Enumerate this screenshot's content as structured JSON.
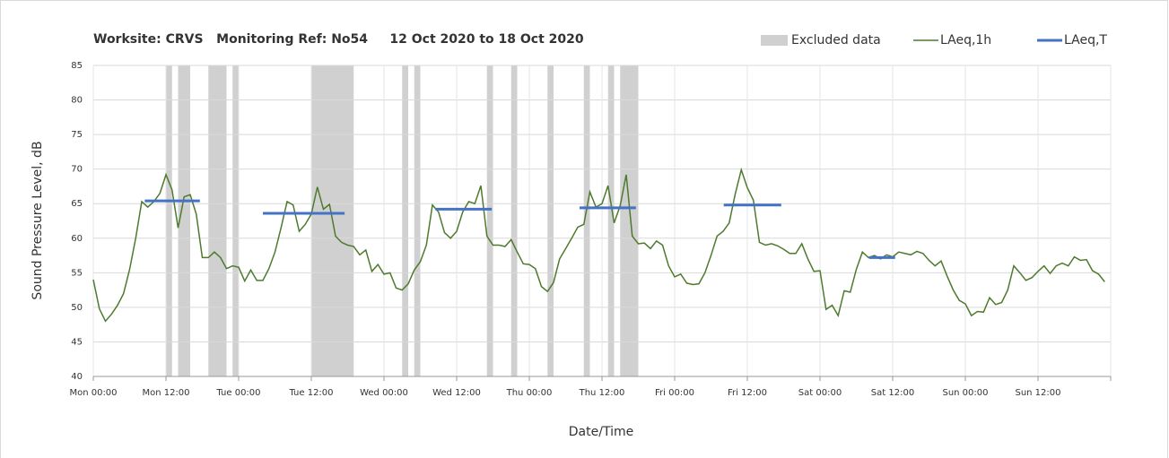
{
  "chart_data": {
    "type": "line",
    "title": "Worksite: CRVS   Monitoring Ref: No54     12 Oct 2020 to 18 Oct 2020",
    "x_label": "Date/Time",
    "y_label": "Sound Pressure Level, dB",
    "xlim": [
      0,
      168
    ],
    "ylim": [
      40,
      85
    ],
    "yticks": [
      40,
      45,
      50,
      55,
      60,
      65,
      70,
      75,
      80,
      85
    ],
    "xticks": [
      {
        "value": 0,
        "label": "Mon 00:00"
      },
      {
        "value": 12,
        "label": "Mon 12:00"
      },
      {
        "value": 24,
        "label": "Tue 00:00"
      },
      {
        "value": 36,
        "label": "Tue 12:00"
      },
      {
        "value": 48,
        "label": "Wed 00:00"
      },
      {
        "value": 60,
        "label": "Wed 12:00"
      },
      {
        "value": 72,
        "label": "Thu 00:00"
      },
      {
        "value": 84,
        "label": "Thu 12:00"
      },
      {
        "value": 96,
        "label": "Fri 00:00"
      },
      {
        "value": 108,
        "label": "Fri 12:00"
      },
      {
        "value": 120,
        "label": "Sat 00:00"
      },
      {
        "value": 132,
        "label": "Sat 12:00"
      },
      {
        "value": 144,
        "label": "Sun 00:00"
      },
      {
        "value": 156,
        "label": "Sun 12:00"
      },
      {
        "value": 168,
        "label": ""
      }
    ],
    "grid": true,
    "legend": "top-right",
    "excluded": {
      "name": "Excluded data",
      "color": "#d0d0d0",
      "ranges": [
        [
          12,
          13
        ],
        [
          14,
          16
        ],
        [
          19,
          22
        ],
        [
          23,
          24
        ],
        [
          36,
          43
        ],
        [
          51,
          52
        ],
        [
          53,
          54
        ],
        [
          65,
          66
        ],
        [
          69,
          70
        ],
        [
          75,
          76
        ],
        [
          81,
          82
        ],
        [
          85,
          86
        ],
        [
          87,
          90
        ]
      ]
    },
    "x": [
      0,
      1,
      2,
      3,
      4,
      5,
      6,
      7,
      8,
      9,
      10,
      11,
      12,
      13,
      14,
      15,
      16,
      17,
      18,
      19,
      20,
      21,
      22,
      23,
      24,
      25,
      26,
      27,
      28,
      29,
      30,
      31,
      32,
      33,
      34,
      35,
      36,
      37,
      38,
      39,
      40,
      41,
      42,
      43,
      44,
      45,
      46,
      47,
      48,
      49,
      50,
      51,
      52,
      53,
      54,
      55,
      56,
      57,
      58,
      59,
      60,
      61,
      62,
      63,
      64,
      65,
      66,
      67,
      68,
      69,
      70,
      71,
      72,
      73,
      74,
      75,
      76,
      77,
      78,
      79,
      80,
      81,
      82,
      83,
      84,
      85,
      86,
      87,
      88,
      89,
      90,
      91,
      92,
      93,
      94,
      95,
      96,
      97,
      98,
      99,
      100,
      101,
      102,
      103,
      104,
      105,
      106,
      107,
      108,
      109,
      110,
      111,
      112,
      113,
      114,
      115,
      116,
      117,
      118,
      119,
      120,
      121,
      122,
      123,
      124,
      125,
      126,
      127,
      128,
      129,
      130,
      131,
      132,
      133,
      134,
      135,
      136,
      137,
      138,
      139,
      140,
      141,
      142,
      143,
      144,
      145,
      146,
      147,
      148,
      149,
      150,
      151,
      152,
      153,
      154,
      155,
      156,
      157,
      158,
      159,
      160,
      161,
      162,
      163,
      164,
      165,
      166,
      167
    ],
    "series": [
      {
        "name": "LAeq,1h",
        "color": "#4e7a2e",
        "values": [
          54,
          49.8,
          48,
          49,
          50.3,
          52,
          55.5,
          60,
          65.3,
          64.5,
          65.3,
          66.5,
          69.2,
          67,
          61.5,
          66,
          66.3,
          63.5,
          57.2,
          57.2,
          58,
          57.2,
          55.6,
          56,
          55.8,
          53.8,
          55.4,
          53.9,
          53.9,
          55.6,
          58,
          61.5,
          65.3,
          64.8,
          61,
          62,
          63.5,
          67.4,
          64.2,
          64.9,
          60.3,
          59.4,
          59,
          58.8,
          57.6,
          58.3,
          55.2,
          56.2,
          54.8,
          55,
          52.8,
          52.5,
          53.4,
          55.4,
          56.6,
          59,
          64.8,
          63.8,
          60.8,
          60,
          61,
          63.8,
          65.3,
          65,
          67.6,
          60.3,
          59,
          59,
          58.8,
          59.8,
          58,
          56.3,
          56.2,
          55.6,
          53,
          52.3,
          53.6,
          57,
          58.5,
          60,
          61.6,
          62,
          66.7,
          64.5,
          65,
          67.6,
          62.2,
          64.7,
          69.2,
          60.3,
          59.2,
          59.3,
          58.5,
          59.6,
          59,
          56,
          54.4,
          54.8,
          53.5,
          53.3,
          53.4,
          55,
          57.5,
          60.3,
          61,
          62.2,
          66.4,
          69.9,
          67.3,
          65.5,
          59.4,
          59,
          59.2,
          58.9,
          58.4,
          57.8,
          57.8,
          59.2,
          57,
          55.2,
          55.3,
          49.7,
          50.3,
          48.8,
          52.4,
          52.2,
          55.5,
          58,
          57.2,
          57.5,
          57,
          57.6,
          57.3,
          58,
          57.8,
          57.6,
          58.1,
          57.8,
          56.8,
          56,
          56.7,
          54.5,
          52.5,
          51,
          50.5,
          48.8,
          49.4,
          49.3,
          51.4,
          50.4,
          50.7,
          52.5,
          56,
          55,
          53.9,
          54.3,
          55.2,
          56,
          54.9,
          56,
          56.4,
          56,
          57.3,
          56.8,
          56.9,
          55.3,
          54.8,
          53.7
        ]
      }
    ],
    "periods": {
      "name": "LAeq,T",
      "color": "#4472c4",
      "segments": [
        {
          "start": 8.5,
          "end": 17.6,
          "value": 65.4
        },
        {
          "start": 28,
          "end": 41.5,
          "value": 63.6
        },
        {
          "start": 56.5,
          "end": 65.8,
          "value": 64.2
        },
        {
          "start": 80.3,
          "end": 89.6,
          "value": 64.4
        },
        {
          "start": 104.1,
          "end": 113.6,
          "value": 64.8
        },
        {
          "start": 128.1,
          "end": 132.4,
          "value": 57.2
        }
      ]
    }
  }
}
